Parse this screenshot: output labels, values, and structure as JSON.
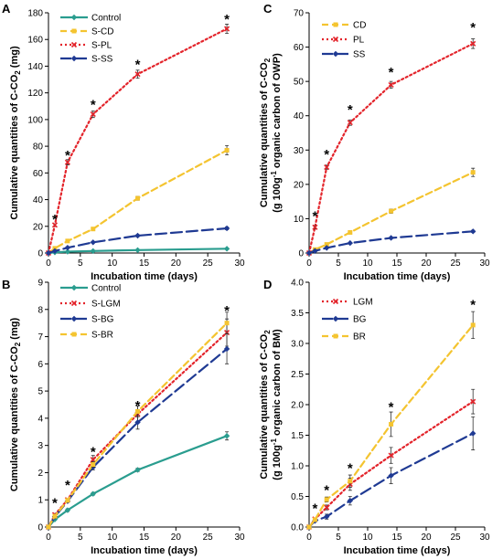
{
  "chart_data": [
    {
      "panel": "A",
      "type": "line",
      "xlabel": "Incubation time (days)",
      "ylabel_lines": [
        "Cumulative quantities of C-CO",
        "2",
        " (mg)"
      ],
      "xlim": [
        0,
        30
      ],
      "ylim": [
        0,
        180
      ],
      "xticks": [
        0,
        5,
        10,
        15,
        20,
        25,
        30
      ],
      "yticks": [
        0,
        20,
        40,
        60,
        80,
        100,
        120,
        140,
        160,
        180
      ],
      "legend_position": "top-left",
      "series": [
        {
          "name": "Control",
          "color": "#2a9d8f",
          "dash": "solid",
          "marker": "diamond",
          "x": [
            0,
            1,
            3,
            7,
            14,
            28
          ],
          "y": [
            0,
            0.5,
            1.0,
            1.5,
            2.2,
            3.2
          ],
          "err": [
            0,
            0,
            0,
            0,
            0,
            0
          ]
        },
        {
          "name": "S-CD",
          "color": "#f4c430",
          "dash": "dash",
          "marker": "square",
          "x": [
            0,
            1,
            3,
            7,
            14,
            28
          ],
          "y": [
            0,
            3.5,
            9,
            18,
            41,
            77
          ],
          "err": [
            0,
            0.5,
            0.8,
            1,
            1.5,
            3.5
          ]
        },
        {
          "name": "S-PL",
          "color": "#e3242b",
          "dash": "dot",
          "marker": "x",
          "x": [
            0,
            1,
            3,
            7,
            14,
            28
          ],
          "y": [
            0,
            21,
            68,
            104,
            134,
            168
          ],
          "err": [
            0,
            1,
            2,
            2.5,
            3,
            3.5
          ]
        },
        {
          "name": "S-SS",
          "color": "#1f3a93",
          "dash": "longdash",
          "marker": "diamond",
          "x": [
            0,
            1,
            3,
            7,
            14,
            28
          ],
          "y": [
            0,
            1.5,
            4,
            8,
            13,
            18.5
          ],
          "err": [
            0,
            0,
            0.5,
            0.5,
            0.8,
            1
          ]
        }
      ],
      "stars_x": [
        1,
        3,
        7,
        14,
        28
      ],
      "stars_y": [
        26,
        74,
        112,
        142,
        176
      ]
    },
    {
      "panel": "B",
      "type": "line",
      "xlabel": "Incubation time (days)",
      "ylabel_lines": [
        "Cumulative quantities of C-CO",
        "2",
        " (mg)"
      ],
      "xlim": [
        0,
        30
      ],
      "ylim": [
        0,
        9
      ],
      "xticks": [
        0,
        5,
        10,
        15,
        20,
        25,
        30
      ],
      "yticks": [
        0,
        1,
        2,
        3,
        4,
        5,
        6,
        7,
        8,
        9
      ],
      "legend_position": "top-left",
      "series": [
        {
          "name": "Control",
          "color": "#2a9d8f",
          "dash": "solid",
          "marker": "diamond",
          "x": [
            0,
            1,
            3,
            7,
            14,
            28
          ],
          "y": [
            0,
            0.28,
            0.62,
            1.22,
            2.1,
            3.35
          ],
          "err": [
            0,
            0.03,
            0.05,
            0.05,
            0.06,
            0.15
          ]
        },
        {
          "name": "S-LGM",
          "color": "#e3242b",
          "dash": "dot",
          "marker": "x",
          "x": [
            0,
            1,
            3,
            7,
            14,
            28
          ],
          "y": [
            0,
            0.45,
            1.0,
            2.48,
            4.15,
            7.15
          ],
          "err": [
            0,
            0.05,
            0.05,
            0.15,
            0.3,
            0.5
          ]
        },
        {
          "name": "S-BG",
          "color": "#1f3a93",
          "dash": "longdash",
          "marker": "diamond",
          "x": [
            0,
            1,
            3,
            7,
            14,
            28
          ],
          "y": [
            0,
            0.38,
            0.95,
            2.2,
            3.85,
            6.55
          ],
          "err": [
            0,
            0.05,
            0.05,
            0.1,
            0.25,
            0.55
          ]
        },
        {
          "name": "S-BR",
          "color": "#f4c430",
          "dash": "dash",
          "marker": "square",
          "x": [
            0,
            1,
            3,
            7,
            14,
            28
          ],
          "y": [
            0,
            0.4,
            0.98,
            2.3,
            4.25,
            7.5
          ],
          "err": [
            0,
            0.05,
            0.05,
            0.1,
            0.2,
            0.4
          ]
        }
      ],
      "stars_x": [
        1,
        3,
        7,
        14,
        28
      ],
      "stars_y": [
        0.92,
        1.58,
        2.8,
        4.5,
        8.0
      ]
    },
    {
      "panel": "C",
      "type": "line",
      "xlabel": "Incubation time (days)",
      "ylabel_lines": [
        "Cumulative quantities of C-CO",
        "2",
        "(g 100g",
        "-1",
        " organic carbon of OWP)"
      ],
      "xlim": [
        0,
        30
      ],
      "ylim": [
        0,
        70
      ],
      "xticks": [
        0,
        5,
        10,
        15,
        20,
        25,
        30
      ],
      "yticks": [
        0,
        10,
        20,
        30,
        40,
        50,
        60,
        70
      ],
      "legend_position": "top-left",
      "series": [
        {
          "name": "CD",
          "color": "#f4c430",
          "dash": "dash",
          "marker": "square",
          "x": [
            0,
            1,
            3,
            7,
            14,
            28
          ],
          "y": [
            0,
            1,
            2.5,
            6,
            12.2,
            23.5
          ],
          "err": [
            0,
            0.2,
            0.3,
            0.4,
            0.6,
            1.2
          ]
        },
        {
          "name": "PL",
          "color": "#e3242b",
          "dash": "dot",
          "marker": "x",
          "x": [
            0,
            1,
            3,
            7,
            14,
            28
          ],
          "y": [
            0,
            7.5,
            25,
            38,
            49,
            61
          ],
          "err": [
            0,
            0.5,
            0.6,
            0.8,
            1,
            1.4
          ]
        },
        {
          "name": "SS",
          "color": "#1f3a93",
          "dash": "longdash",
          "marker": "diamond",
          "x": [
            0,
            1,
            3,
            7,
            14,
            28
          ],
          "y": [
            0,
            0.6,
            1.5,
            2.9,
            4.4,
            6.3
          ],
          "err": [
            0,
            0,
            0.1,
            0.1,
            0.2,
            0.3
          ]
        }
      ],
      "stars_x": [
        1,
        3,
        7,
        14,
        28
      ],
      "stars_y": [
        11,
        29,
        42,
        53,
        66
      ]
    },
    {
      "panel": "D",
      "type": "line",
      "xlabel": "Incubation time (days)",
      "ylabel_lines": [
        "Cumulative quantities of C-CO",
        "2",
        "(g 100g",
        "-1",
        " organic carbon of BM)"
      ],
      "xlim": [
        0,
        30
      ],
      "ylim": [
        0,
        4.0
      ],
      "xticks": [
        0,
        5,
        10,
        15,
        20,
        25,
        30
      ],
      "yticks": [
        "0.0",
        "0.5",
        "1.0",
        "1.5",
        "2.0",
        "2.5",
        "3.0",
        "3.5",
        "4.0"
      ],
      "legend_position": "top-left",
      "series": [
        {
          "name": "LGM",
          "color": "#e3242b",
          "dash": "dot",
          "marker": "x",
          "x": [
            0,
            1,
            3,
            7,
            14,
            28
          ],
          "y": [
            0,
            0.13,
            0.32,
            0.7,
            1.17,
            2.05
          ],
          "err": [
            0,
            0.02,
            0.04,
            0.1,
            0.13,
            0.2
          ]
        },
        {
          "name": "BG",
          "color": "#1f3a93",
          "dash": "longdash",
          "marker": "diamond",
          "x": [
            0,
            1,
            3,
            7,
            14,
            28
          ],
          "y": [
            0,
            0.1,
            0.17,
            0.43,
            0.84,
            1.53
          ],
          "err": [
            0,
            0.02,
            0.04,
            0.07,
            0.13,
            0.27
          ]
        },
        {
          "name": "BR",
          "color": "#f4c430",
          "dash": "dash",
          "marker": "square",
          "x": [
            0,
            1,
            3,
            7,
            14,
            28
          ],
          "y": [
            0,
            0.12,
            0.45,
            0.75,
            1.68,
            3.3
          ],
          "err": [
            0,
            0.02,
            0.04,
            0.1,
            0.2,
            0.22
          ]
        }
      ],
      "stars_x": [
        1,
        3,
        7,
        14,
        28
      ],
      "stars_y": [
        0.32,
        0.62,
        0.98,
        1.98,
        3.65
      ]
    }
  ],
  "star_symbol": "*"
}
